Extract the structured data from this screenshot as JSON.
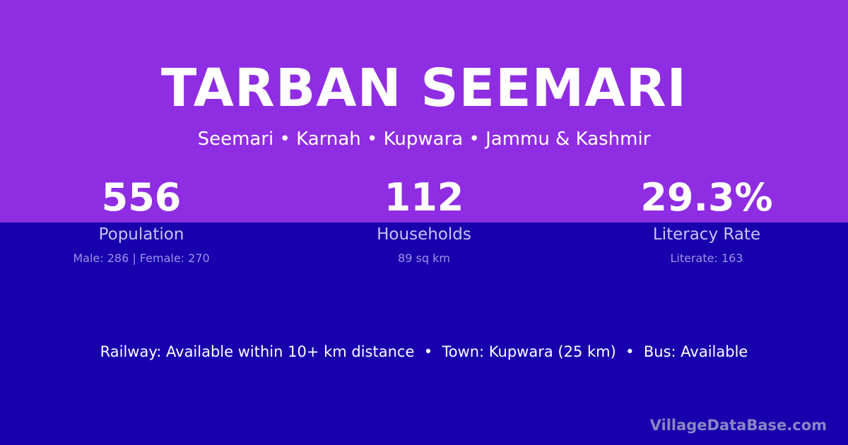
{
  "title": "TARBAN SEEMARI",
  "subtitle": "Seemari • Karnah • Kupwara • Jammu & Kashmir",
  "stats": [
    {
      "value": "556",
      "label": "Population",
      "sub": "Male: 286 | Female: 270"
    },
    {
      "value": "112",
      "label": "Households",
      "sub": "89 sq km"
    },
    {
      "value": "29.3%",
      "label": "Literacy Rate",
      "sub": "Literate: 163"
    }
  ],
  "info": "Railway: Available within 10+ km distance  •  Town: Kupwara (25 km)  •  Bus: Available",
  "brand": "VillageDataBase.com",
  "colors": {
    "top": "#8f2de2",
    "bottom": "#1800ad"
  }
}
